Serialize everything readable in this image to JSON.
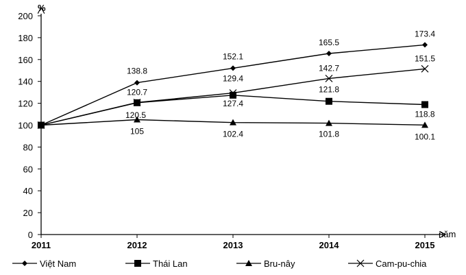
{
  "chart_data": {
    "type": "line",
    "x": [
      "2011",
      "2012",
      "2013",
      "2014",
      "2015"
    ],
    "x_unit": "năm",
    "y_unit": "%",
    "ylim": [
      0,
      200
    ],
    "y_ticks": [
      "0",
      "20",
      "40",
      "60",
      "80",
      "100",
      "120",
      "140",
      "160",
      "180",
      "200"
    ],
    "grid": false,
    "legend_position": "bottom",
    "series": [
      {
        "name": "Việt Nam",
        "marker": "diamond",
        "values": [
          100,
          138.8,
          152.1,
          165.5,
          173.4
        ],
        "labels": [
          "",
          "138.8",
          "152.1",
          "165.5",
          "173.4"
        ]
      },
      {
        "name": "Thái Lan",
        "marker": "square",
        "values": [
          100,
          120.5,
          127.4,
          121.8,
          118.8
        ],
        "labels": [
          "",
          "120.5",
          "127.4",
          "121.8",
          "118.8"
        ]
      },
      {
        "name": "Bru-nây",
        "marker": "triangle",
        "values": [
          100,
          105,
          102.4,
          101.8,
          100.1
        ],
        "labels": [
          "",
          "105",
          "102.4",
          "101.8",
          "100.1"
        ]
      },
      {
        "name": "Cam-pu-chia",
        "marker": "cross",
        "values": [
          100,
          120.7,
          129.4,
          142.7,
          151.5
        ],
        "labels": [
          "",
          "120.7",
          "129.4",
          "142.7",
          "151.5"
        ]
      }
    ]
  }
}
